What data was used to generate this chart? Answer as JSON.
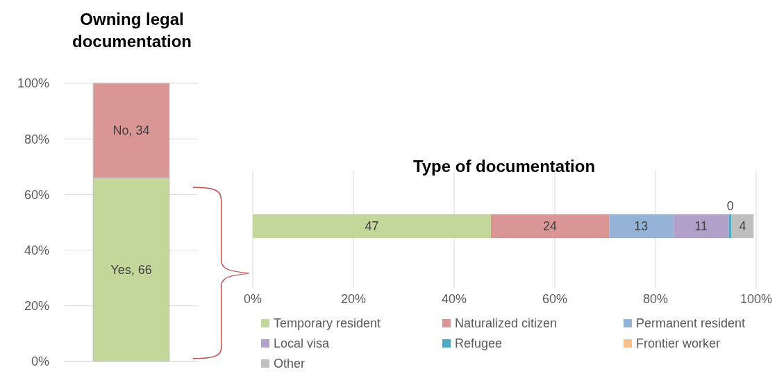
{
  "chart_data": [
    {
      "type": "bar",
      "title": "Owning legal documentation",
      "categories": [
        null
      ],
      "stacked": true,
      "ylim": [
        0,
        100
      ],
      "yticks": [
        {
          "value": 0,
          "label": "0%"
        },
        {
          "value": 20,
          "label": "20%"
        },
        {
          "value": 40,
          "label": "40%"
        },
        {
          "value": 60,
          "label": "60%"
        },
        {
          "value": 80,
          "label": "80%"
        },
        {
          "value": 100,
          "label": "100%"
        }
      ],
      "grid": "y",
      "tick_labels": "y",
      "series": [
        {
          "color": "#c4d79b",
          "values": [
            66
          ],
          "value_labels": [
            "Yes, 66"
          ]
        },
        {
          "color": "#da9694",
          "values": [
            34
          ],
          "value_labels": [
            "No, 34"
          ]
        }
      ]
    },
    {
      "type": "bar",
      "title": "Type of documentation",
      "orientation": "horizontal",
      "categories": [
        null
      ],
      "stacked": true,
      "xlim": [
        0,
        100
      ],
      "xticks": [
        {
          "value": 0,
          "label": "0%"
        },
        {
          "value": 20,
          "label": "20%"
        },
        {
          "value": 40,
          "label": "40%"
        },
        {
          "value": 60,
          "label": "60%"
        },
        {
          "value": 80,
          "label": "80%"
        },
        {
          "value": 100,
          "label": "100%"
        }
      ],
      "grid": "x",
      "tick_labels": "x",
      "legend": "bottom",
      "series": [
        {
          "name": "Temporary resident",
          "color": "#c4d79b",
          "values": [
            47.3
          ],
          "value_labels": [
            "47"
          ]
        },
        {
          "name": "Naturalized citizen",
          "color": "#da9694",
          "values": [
            23.5
          ],
          "value_labels": [
            "24"
          ]
        },
        {
          "name": "Permanent resident",
          "color": "#95b3d7",
          "values": [
            12.7
          ],
          "value_labels": [
            "13"
          ]
        },
        {
          "name": "Local visa",
          "color": "#b1a0c7",
          "values": [
            11.1
          ],
          "value_labels": [
            "11"
          ]
        },
        {
          "name": "Refugee",
          "color": "#4bacc6",
          "values": [
            0.5
          ],
          "value_labels": [
            "0"
          ]
        },
        {
          "name": "Frontier worker",
          "color": "#fabf8f",
          "values": [
            0
          ],
          "value_labels": [
            null
          ]
        },
        {
          "name": "Other",
          "color": "#bfbfbf",
          "values": [
            4.4
          ],
          "value_labels": [
            "4"
          ]
        }
      ]
    }
  ]
}
